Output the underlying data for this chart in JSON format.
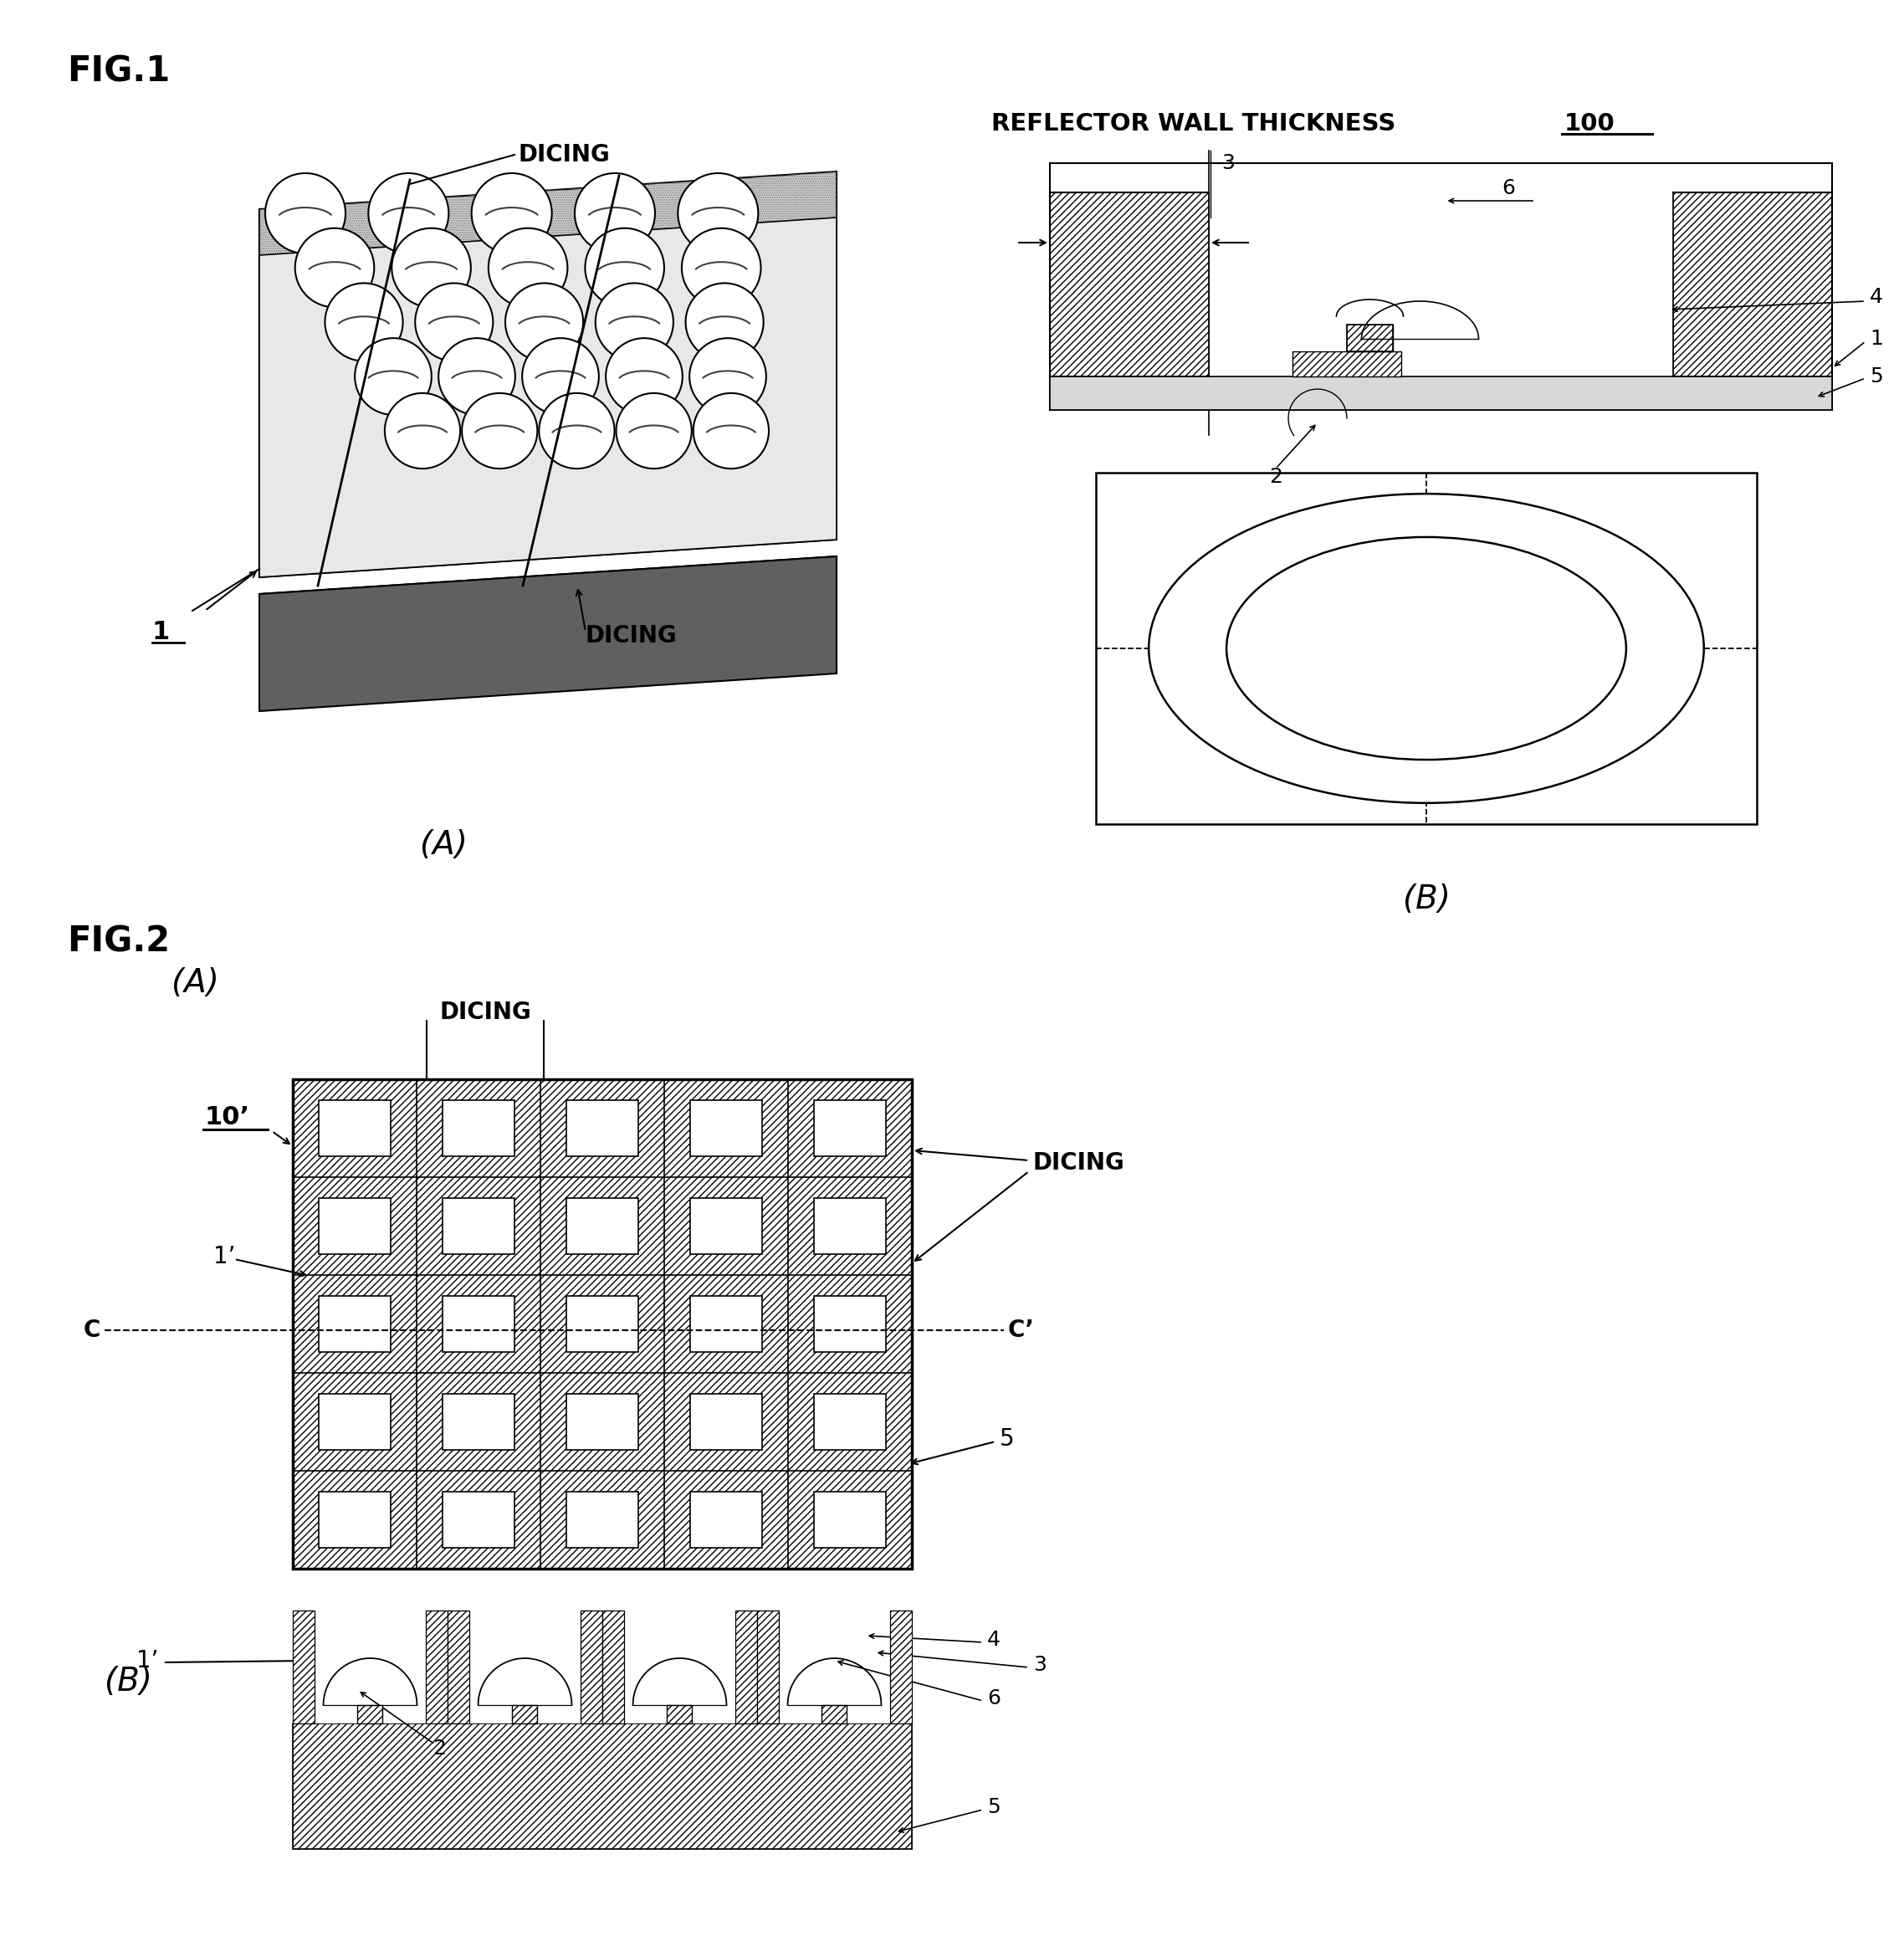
{
  "fig_width": 22.76,
  "fig_height": 23.26,
  "bg_color": "#ffffff",
  "fig1_label": "FIG.1",
  "fig2_label": "FIG.2",
  "label_100": "100",
  "label_A": "(A)",
  "label_B": "(B)",
  "dicing_label": "DICING",
  "reflector_wall_label": "REFLECTOR WALL THICKNESS",
  "line_color": "#000000",
  "gray_light": "#c8c8c8",
  "gray_mid": "#a0a0a0",
  "gray_dark": "#707070"
}
